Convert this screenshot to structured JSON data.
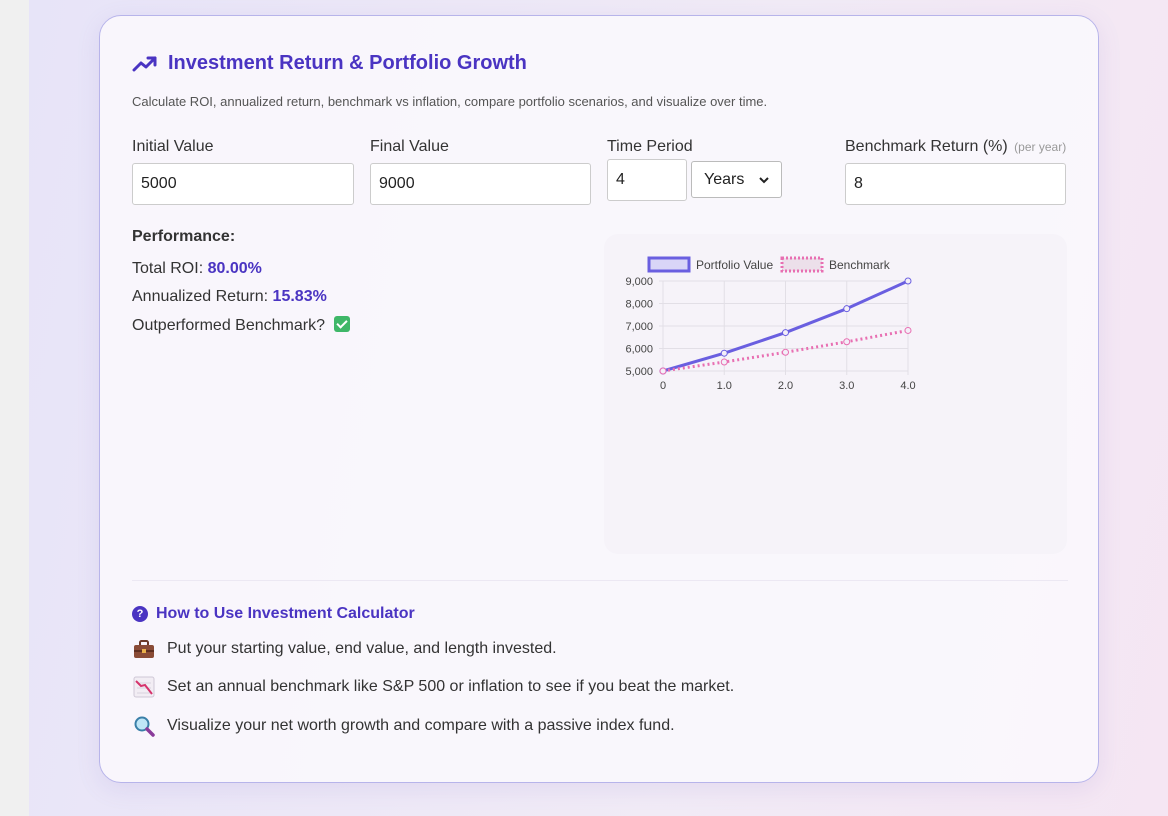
{
  "header": {
    "title": "Investment Return & Portfolio Growth",
    "subtitle": "Calculate ROI, annualized return, benchmark vs inflation, compare portfolio scenarios, and visualize over time."
  },
  "form": {
    "initial_label": "Initial Value",
    "initial_value": "5000",
    "final_label": "Final Value",
    "final_value": "9000",
    "period_label": "Time Period",
    "period_value": "4",
    "period_unit": "Years",
    "benchmark_label": "Benchmark Return (%)",
    "benchmark_hint": "(per year)",
    "benchmark_value": "8"
  },
  "performance": {
    "title": "Performance:",
    "roi_label": "Total ROI:",
    "roi_value": "80.00%",
    "annualized_label": "Annualized Return:",
    "annualized_value": "15.83%",
    "outperformed_label": "Outperformed Benchmark?"
  },
  "chart_data": {
    "type": "line",
    "x": [
      0,
      1,
      2,
      3,
      4
    ],
    "x_tick_labels": [
      "0",
      "1.0",
      "2.0",
      "3.0",
      "4.0"
    ],
    "y_tick_labels": [
      "5,000",
      "6,000",
      "7,000",
      "8,000",
      "9,000"
    ],
    "ylim": [
      5000,
      9000
    ],
    "grid": true,
    "legend_position": "top",
    "series": [
      {
        "name": "Portfolio Value",
        "values": [
          5000,
          5791,
          6708,
          7770,
          9000
        ],
        "color": "#6a5fe0",
        "style": "solid"
      },
      {
        "name": "Benchmark",
        "values": [
          5000,
          5400,
          5832,
          6299,
          6802
        ],
        "color": "#e86fb2",
        "style": "dotted"
      }
    ]
  },
  "help": {
    "title": "How to Use Investment Calculator",
    "tips": [
      {
        "icon": "briefcase-icon",
        "text": "Put your starting value, end value, and length invested."
      },
      {
        "icon": "chart-down-icon",
        "text": "Set an annual benchmark like S&P 500 or inflation to see if you beat the market."
      },
      {
        "icon": "magnifier-icon",
        "text": "Visualize your net worth growth and compare with a passive index fund."
      }
    ]
  },
  "colors": {
    "accent": "#4a34c2",
    "portfolio": "#6a5fe0",
    "benchmark": "#e86fb2",
    "success": "#3fb768"
  }
}
